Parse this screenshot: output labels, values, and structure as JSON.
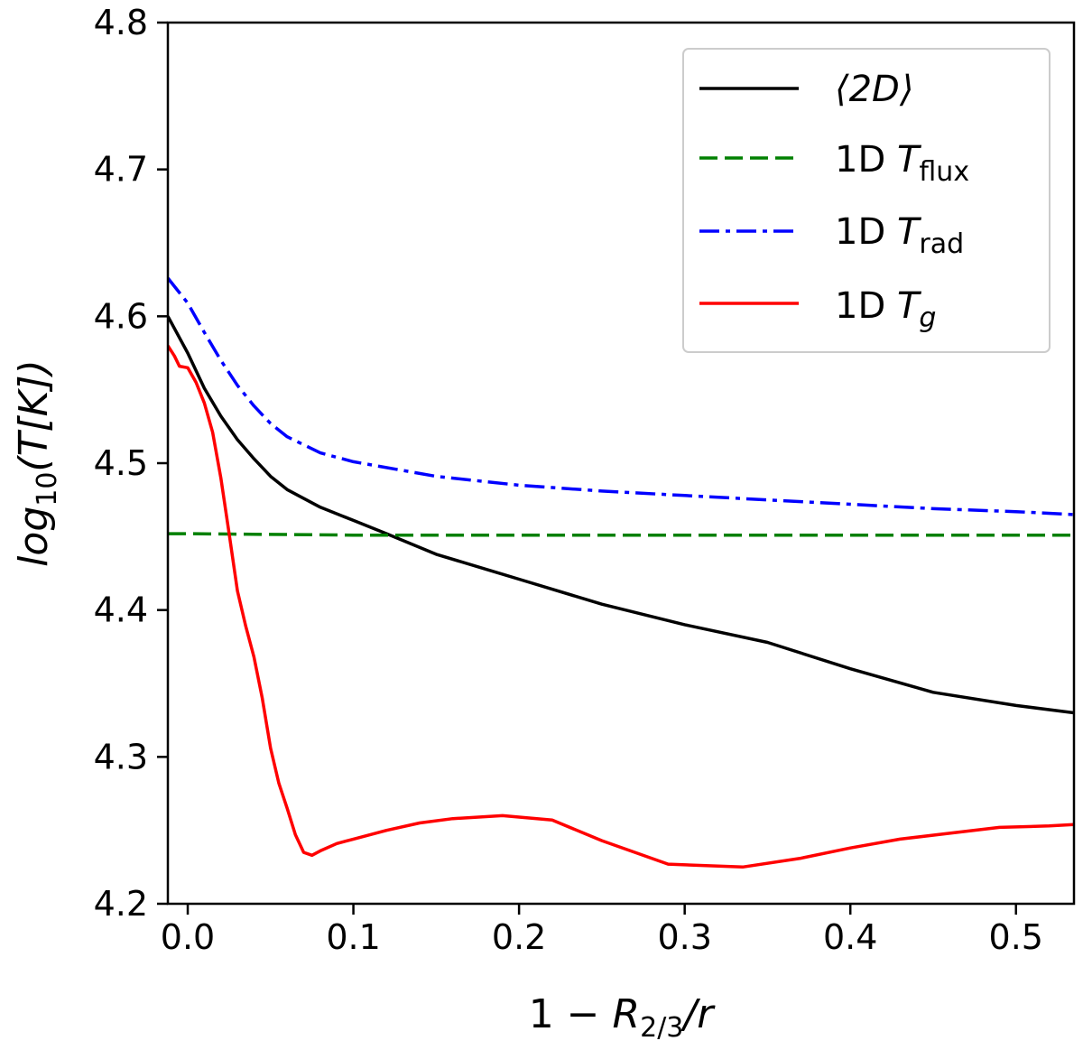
{
  "chart_data": {
    "type": "line",
    "xlabel": "1 − R2/3/r",
    "xlabel_parts": {
      "lead": "1 − ",
      "var": "R",
      "sub": "2/3",
      "tail": "/r"
    },
    "ylabel": "log10(T[K])",
    "ylabel_parts": {
      "lead": "log",
      "sub": "10",
      "tail": "(T[K])"
    },
    "xlim": [
      -0.012,
      0.535
    ],
    "ylim": [
      4.2,
      4.8
    ],
    "xticks": [
      0.0,
      0.1,
      0.2,
      0.3,
      0.4,
      0.5
    ],
    "xtick_labels": [
      "0.0",
      "0.1",
      "0.2",
      "0.3",
      "0.4",
      "0.5"
    ],
    "yticks": [
      4.2,
      4.3,
      4.4,
      4.5,
      4.6,
      4.7,
      4.8
    ],
    "ytick_labels": [
      "4.2",
      "4.3",
      "4.4",
      "4.5",
      "4.6",
      "4.7",
      "4.8"
    ],
    "grid": false,
    "legend_position": "top-right",
    "series": [
      {
        "name": "⟨2D⟩",
        "legend": {
          "text": "⟨2D⟩"
        },
        "color": "#000000",
        "dash": "solid",
        "x": [
          -0.012,
          0.0,
          0.01,
          0.02,
          0.03,
          0.04,
          0.05,
          0.06,
          0.08,
          0.1,
          0.12,
          0.15,
          0.2,
          0.25,
          0.3,
          0.35,
          0.4,
          0.45,
          0.5,
          0.535
        ],
        "y": [
          4.6,
          4.575,
          4.551,
          4.532,
          4.516,
          4.503,
          4.491,
          4.482,
          4.47,
          4.461,
          4.452,
          4.438,
          4.421,
          4.404,
          4.39,
          4.378,
          4.36,
          4.344,
          4.335,
          4.33
        ]
      },
      {
        "name": "1D Tflux",
        "legend": {
          "lead": "1D ",
          "var": "T",
          "sub": "flux"
        },
        "color": "#008000",
        "dash": "dashed",
        "x": [
          -0.012,
          0.0,
          0.1,
          0.2,
          0.3,
          0.4,
          0.5,
          0.535
        ],
        "y": [
          4.452,
          4.452,
          4.451,
          4.451,
          4.451,
          4.451,
          4.451,
          4.451
        ]
      },
      {
        "name": "1D Trad",
        "legend": {
          "lead": "1D ",
          "var": "T",
          "sub": "rad"
        },
        "color": "#0000ff",
        "dash": "dashdot",
        "x": [
          -0.012,
          0.0,
          0.01,
          0.02,
          0.03,
          0.04,
          0.05,
          0.06,
          0.08,
          0.1,
          0.15,
          0.2,
          0.25,
          0.3,
          0.35,
          0.4,
          0.45,
          0.5,
          0.535
        ],
        "y": [
          4.626,
          4.609,
          4.589,
          4.57,
          4.553,
          4.539,
          4.527,
          4.518,
          4.507,
          4.501,
          4.491,
          4.485,
          4.481,
          4.478,
          4.475,
          4.472,
          4.469,
          4.467,
          4.465
        ]
      },
      {
        "name": "1D Tg",
        "legend": {
          "lead": "1D ",
          "var": "T",
          "sub": "g"
        },
        "color": "#ff0000",
        "dash": "solid",
        "x": [
          -0.012,
          -0.008,
          -0.005,
          0.0,
          0.005,
          0.01,
          0.015,
          0.02,
          0.025,
          0.03,
          0.035,
          0.04,
          0.045,
          0.05,
          0.055,
          0.06,
          0.065,
          0.07,
          0.075,
          0.08,
          0.09,
          0.1,
          0.12,
          0.14,
          0.16,
          0.19,
          0.22,
          0.25,
          0.29,
          0.335,
          0.37,
          0.4,
          0.43,
          0.46,
          0.49,
          0.52,
          0.535
        ],
        "y": [
          4.58,
          4.573,
          4.566,
          4.565,
          4.555,
          4.541,
          4.521,
          4.49,
          4.452,
          4.413,
          4.389,
          4.368,
          4.34,
          4.306,
          4.282,
          4.265,
          4.247,
          4.235,
          4.233,
          4.236,
          4.241,
          4.244,
          4.25,
          4.255,
          4.258,
          4.26,
          4.257,
          4.243,
          4.227,
          4.225,
          4.231,
          4.238,
          4.244,
          4.248,
          4.252,
          4.253,
          4.254
        ]
      }
    ]
  }
}
